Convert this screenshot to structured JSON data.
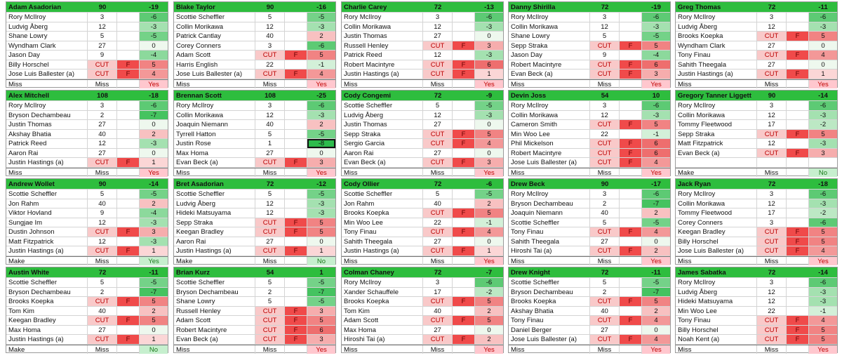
{
  "cards": [
    {
      "name": "Adam Asadorian",
      "points": "90",
      "total": "-19",
      "rows": [
        [
          "Rory McIlroy",
          "3",
          null,
          "-6"
        ],
        [
          "Ludvig Åberg",
          "12",
          null,
          "-3"
        ],
        [
          "Shane Lowry",
          "5",
          null,
          "-5"
        ],
        [
          "Wyndham Clark",
          "27",
          null,
          "0"
        ],
        [
          "Jason Day",
          "9",
          null,
          "-4"
        ],
        [
          "Billy Horschel",
          "CUT",
          "F",
          "5"
        ],
        [
          "Jose Luis Ballester (a)",
          "CUT",
          "F",
          "4"
        ]
      ],
      "footer": [
        "Miss",
        "Miss",
        "Yes"
      ]
    },
    {
      "name": "Blake Taylor",
      "points": "90",
      "total": "-16",
      "rows": [
        [
          "Scottie Scheffler",
          "5",
          null,
          "-5"
        ],
        [
          "Collin Morikawa",
          "12",
          null,
          "-3"
        ],
        [
          "Patrick Cantlay",
          "40",
          null,
          "2"
        ],
        [
          "Corey Conners",
          "3",
          null,
          "-6"
        ],
        [
          "Adam Scott",
          "CUT",
          "F",
          "5"
        ],
        [
          "Harris English",
          "22",
          null,
          "-1"
        ],
        [
          "Jose Luis Ballester (a)",
          "CUT",
          "F",
          "4"
        ]
      ],
      "footer": [
        "Miss",
        "Miss",
        "Yes"
      ]
    },
    {
      "name": "Charlie Carey",
      "points": "72",
      "total": "-13",
      "rows": [
        [
          "Rory McIlroy",
          "3",
          null,
          "-6"
        ],
        [
          "Collin Morikawa",
          "12",
          null,
          "-3"
        ],
        [
          "Justin Thomas",
          "27",
          null,
          "0"
        ],
        [
          "Russell Henley",
          "CUT",
          "F",
          "3"
        ],
        [
          "Patrick Reed",
          "12",
          null,
          "-3"
        ],
        [
          "Robert Macintyre",
          "CUT",
          "F",
          "6"
        ],
        [
          "Justin Hastings (a)",
          "CUT",
          "F",
          "1"
        ]
      ],
      "footer": [
        "Miss",
        "Miss",
        "Yes"
      ]
    },
    {
      "name": "Danny Shirilla",
      "points": "72",
      "total": "-19",
      "rows": [
        [
          "Rory McIlroy",
          "3",
          null,
          "-6"
        ],
        [
          "Collin Morikawa",
          "12",
          null,
          "-3"
        ],
        [
          "Shane Lowry",
          "5",
          null,
          "-5"
        ],
        [
          "Sepp Straka",
          "CUT",
          "F",
          "5"
        ],
        [
          "Jason Day",
          "9",
          null,
          "-4"
        ],
        [
          "Robert Macintyre",
          "CUT",
          "F",
          "6"
        ],
        [
          "Evan Beck (a)",
          "CUT",
          "F",
          "3"
        ]
      ],
      "footer": [
        "Miss",
        "Miss",
        "Yes"
      ]
    },
    {
      "name": "Greg Thomas",
      "points": "72",
      "total": "-11",
      "rows": [
        [
          "Rory McIlroy",
          "3",
          null,
          "-6"
        ],
        [
          "Ludvig Åberg",
          "12",
          null,
          "-3"
        ],
        [
          "Brooks Koepka",
          "CUT",
          "F",
          "5"
        ],
        [
          "Wyndham Clark",
          "27",
          null,
          "0"
        ],
        [
          "Tony Finau",
          "CUT",
          "F",
          "4"
        ],
        [
          "Sahith Theegala",
          "27",
          null,
          "0"
        ],
        [
          "Justin Hastings (a)",
          "CUT",
          "F",
          "1"
        ]
      ],
      "footer": [
        "Miss",
        "Miss",
        "Yes"
      ]
    },
    {
      "name": "Alex Mitchell",
      "points": "108",
      "total": "-18",
      "rows": [
        [
          "Rory McIlroy",
          "3",
          null,
          "-6"
        ],
        [
          "Bryson Dechambeau",
          "2",
          null,
          "-7"
        ],
        [
          "Justin Thomas",
          "27",
          null,
          "0"
        ],
        [
          "Akshay Bhatia",
          "40",
          null,
          "2"
        ],
        [
          "Patrick Reed",
          "12",
          null,
          "-3"
        ],
        [
          "Aaron Rai",
          "27",
          null,
          "0"
        ],
        [
          "Justin Hastings (a)",
          "CUT",
          "F",
          "1"
        ]
      ],
      "footer": [
        "Miss",
        "Miss",
        "Yes"
      ]
    },
    {
      "name": "Brennan Scott",
      "points": "108",
      "total": "-25",
      "rows": [
        [
          "Rory McIlroy",
          "3",
          null,
          "-6"
        ],
        [
          "Collin Morikawa",
          "12",
          null,
          "-3"
        ],
        [
          "Joaquin Niemann",
          "40",
          null,
          "2"
        ],
        [
          "Tyrrell Hatton",
          "5",
          null,
          "-5"
        ],
        [
          "Justin Rose",
          "1",
          null,
          "-8"
        ],
        [
          "Max Homa",
          "27",
          null,
          "0"
        ],
        [
          "Evan Beck (a)",
          "CUT",
          "F",
          "3"
        ]
      ],
      "footer": [
        "Miss",
        "Miss",
        "Yes"
      ]
    },
    {
      "name": "Cody Congemi",
      "points": "72",
      "total": "-9",
      "rows": [
        [
          "Scottie Scheffler",
          "5",
          null,
          "-5"
        ],
        [
          "Ludvig Åberg",
          "12",
          null,
          "-3"
        ],
        [
          "Justin Thomas",
          "27",
          null,
          "0"
        ],
        [
          "Sepp Straka",
          "CUT",
          "F",
          "5"
        ],
        [
          "Sergio Garcia",
          "CUT",
          "F",
          "4"
        ],
        [
          "Aaron Rai",
          "27",
          null,
          "0"
        ],
        [
          "Evan Beck (a)",
          "CUT",
          "F",
          "3"
        ]
      ],
      "footer": [
        "Miss",
        "Miss",
        "Yes"
      ]
    },
    {
      "name": "Devin Joss",
      "points": "54",
      "total": "10",
      "rows": [
        [
          "Rory McIlroy",
          "3",
          null,
          "-6"
        ],
        [
          "Collin Morikawa",
          "12",
          null,
          "-3"
        ],
        [
          "Cameron Smith",
          "CUT",
          "F",
          "5"
        ],
        [
          "Min Woo Lee",
          "22",
          null,
          "-1"
        ],
        [
          "Phil Mickelson",
          "CUT",
          "F",
          "6"
        ],
        [
          "Robert Macintyre",
          "CUT",
          "F",
          "6"
        ],
        [
          "Jose Luis Ballester (a)",
          "CUT",
          "F",
          "4"
        ]
      ],
      "footer": [
        "Miss",
        "Miss",
        "Yes"
      ]
    },
    {
      "name": "Gregory Tanner Liggett",
      "points": "90",
      "total": "-14",
      "rows": [
        [
          "Rory McIlroy",
          "3",
          null,
          "-6"
        ],
        [
          "Collin Morikawa",
          "12",
          null,
          "-3"
        ],
        [
          "Tommy Fleetwood",
          "17",
          null,
          "-2"
        ],
        [
          "Sepp Straka",
          "CUT",
          "F",
          "5"
        ],
        [
          "Matt Fitzpatrick",
          "12",
          null,
          "-3"
        ],
        [
          "Evan Beck (a)",
          "CUT",
          "F",
          "3"
        ]
      ],
      "footer": [
        "Make",
        "Miss",
        "No"
      ]
    },
    {
      "name": "Andrew Wollet",
      "points": "90",
      "total": "-14",
      "rows": [
        [
          "Scottie Scheffler",
          "5",
          null,
          "-5"
        ],
        [
          "Jon Rahm",
          "40",
          null,
          "2"
        ],
        [
          "Viktor Hovland",
          "9",
          null,
          "-4"
        ],
        [
          "Sungjae Im",
          "12",
          null,
          "-3"
        ],
        [
          "Dustin Johnson",
          "CUT",
          "F",
          "3"
        ],
        [
          "Matt Fitzpatrick",
          "12",
          null,
          "-3"
        ],
        [
          "Justin Hastings (a)",
          "CUT",
          "F",
          "1"
        ]
      ],
      "footer": [
        "Make",
        "Miss",
        "Yes"
      ]
    },
    {
      "name": "Bret Asadorian",
      "points": "72",
      "total": "-12",
      "rows": [
        [
          "Scottie Scheffler",
          "5",
          null,
          "-5"
        ],
        [
          "Ludvig Åberg",
          "12",
          null,
          "-3"
        ],
        [
          "Hideki Matsuyama",
          "12",
          null,
          "-3"
        ],
        [
          "Sepp Straka",
          "CUT",
          "F",
          "5"
        ],
        [
          "Keegan Bradley",
          "CUT",
          "F",
          "5"
        ],
        [
          "Aaron Rai",
          "27",
          null,
          "0"
        ],
        [
          "Justin Hastings (a)",
          "CUT",
          "F",
          "1"
        ]
      ],
      "footer": [
        "Make",
        "Miss",
        "No"
      ]
    },
    {
      "name": "Cody Ollier",
      "points": "72",
      "total": "-6",
      "rows": [
        [
          "Scottie Scheffler",
          "5",
          null,
          "-5"
        ],
        [
          "Jon Rahm",
          "40",
          null,
          "2"
        ],
        [
          "Brooks Koepka",
          "CUT",
          "F",
          "5"
        ],
        [
          "Min Woo Lee",
          "22",
          null,
          "-1"
        ],
        [
          "Tony Finau",
          "CUT",
          "F",
          "4"
        ],
        [
          "Sahith Theegala",
          "27",
          null,
          "0"
        ],
        [
          "Justin Hastings (a)",
          "CUT",
          "F",
          "1"
        ]
      ],
      "footer": [
        "Miss",
        "Miss",
        "Yes"
      ]
    },
    {
      "name": "Drew Beck",
      "points": "90",
      "total": "-17",
      "rows": [
        [
          "Rory McIlroy",
          "3",
          null,
          "-6"
        ],
        [
          "Bryson Dechambeau",
          "2",
          null,
          "-7"
        ],
        [
          "Joaquin Niemann",
          "40",
          null,
          "2"
        ],
        [
          "Scottie Scheffler",
          "5",
          null,
          "-5"
        ],
        [
          "Tony Finau",
          "CUT",
          "F",
          "4"
        ],
        [
          "Sahith Theegala",
          "27",
          null,
          "0"
        ],
        [
          "Hiroshi Tai (a)",
          "CUT",
          "F",
          "2"
        ]
      ],
      "footer": [
        "Miss",
        "Miss",
        "Yes"
      ]
    },
    {
      "name": "Jack Ryan",
      "points": "72",
      "total": "-18",
      "rows": [
        [
          "Rory McIlroy",
          "3",
          null,
          "-6"
        ],
        [
          "Collin Morikawa",
          "12",
          null,
          "-3"
        ],
        [
          "Tommy Fleetwood",
          "17",
          null,
          "-2"
        ],
        [
          "Corey Conners",
          "3",
          null,
          "-6"
        ],
        [
          "Keegan Bradley",
          "CUT",
          "F",
          "5"
        ],
        [
          "Billy Horschel",
          "CUT",
          "F",
          "5"
        ],
        [
          "Jose Luis Ballester (a)",
          "CUT",
          "F",
          "4"
        ]
      ],
      "footer": [
        "Miss",
        "Miss",
        "Yes"
      ]
    },
    {
      "name": "Austin White",
      "points": "72",
      "total": "-11",
      "rows": [
        [
          "Scottie Scheffler",
          "5",
          null,
          "-5"
        ],
        [
          "Bryson Dechambeau",
          "2",
          null,
          "-7"
        ],
        [
          "Brooks Koepka",
          "CUT",
          "F",
          "5"
        ],
        [
          "Tom Kim",
          "40",
          null,
          "2"
        ],
        [
          "Keegan Bradley",
          "CUT",
          "F",
          "5"
        ],
        [
          "Max Homa",
          "27",
          null,
          "0"
        ],
        [
          "Justin Hastings (a)",
          "CUT",
          "F",
          "1"
        ]
      ],
      "footer": [
        "Make",
        "Miss",
        "No"
      ]
    },
    {
      "name": "Brian Kurz",
      "points": "54",
      "total": "1",
      "rows": [
        [
          "Scottie Scheffler",
          "5",
          null,
          "-5"
        ],
        [
          "Bryson Dechambeau",
          "2",
          null,
          "-7"
        ],
        [
          "Shane Lowry",
          "5",
          null,
          "-5"
        ],
        [
          "Russell Henley",
          "CUT",
          "F",
          "3"
        ],
        [
          "Adam Scott",
          "CUT",
          "F",
          "5"
        ],
        [
          "Robert Macintyre",
          "CUT",
          "F",
          "6"
        ],
        [
          "Evan Beck (a)",
          "CUT",
          "F",
          "3"
        ]
      ],
      "footer": [
        "Miss",
        "Miss",
        "Yes"
      ]
    },
    {
      "name": "Colman Chaney",
      "points": "72",
      "total": "-7",
      "rows": [
        [
          "Rory McIlroy",
          "3",
          null,
          "-6"
        ],
        [
          "Xander Schauffele",
          "17",
          null,
          "-2"
        ],
        [
          "Brooks Koepka",
          "CUT",
          "F",
          "5"
        ],
        [
          "Tom Kim",
          "40",
          null,
          "2"
        ],
        [
          "Adam Scott",
          "CUT",
          "F",
          "5"
        ],
        [
          "Max Homa",
          "27",
          null,
          "0"
        ],
        [
          "Hiroshi Tai (a)",
          "CUT",
          "F",
          "2"
        ]
      ],
      "footer": [
        "Miss",
        "Miss",
        "Yes"
      ]
    },
    {
      "name": "Drew Knight",
      "points": "72",
      "total": "-11",
      "rows": [
        [
          "Scottie Scheffler",
          "5",
          null,
          "-5"
        ],
        [
          "Bryson Dechambeau",
          "2",
          null,
          "-7"
        ],
        [
          "Brooks Koepka",
          "CUT",
          "F",
          "5"
        ],
        [
          "Akshay Bhatia",
          "40",
          null,
          "2"
        ],
        [
          "Tony Finau",
          "CUT",
          "F",
          "4"
        ],
        [
          "Daniel Berger",
          "27",
          null,
          "0"
        ],
        [
          "Jose Luis Ballester (a)",
          "CUT",
          "F",
          "4"
        ]
      ],
      "footer": [
        "Miss",
        "Miss",
        "Yes"
      ]
    },
    {
      "name": "James Sabatka",
      "points": "72",
      "total": "-14",
      "rows": [
        [
          "Rory McIlroy",
          "3",
          null,
          "-6"
        ],
        [
          "Ludvig Åberg",
          "12",
          null,
          "-3"
        ],
        [
          "Hideki Matsuyama",
          "12",
          null,
          "-3"
        ],
        [
          "Min Woo Lee",
          "22",
          null,
          "-1"
        ],
        [
          "Tony Finau",
          "CUT",
          "F",
          "4"
        ],
        [
          "Billy Horschel",
          "CUT",
          "F",
          "5"
        ],
        [
          "Noah Kent (a)",
          "CUT",
          "F",
          "5"
        ]
      ],
      "footer": [
        "Miss",
        "Miss",
        "Yes"
      ]
    }
  ]
}
